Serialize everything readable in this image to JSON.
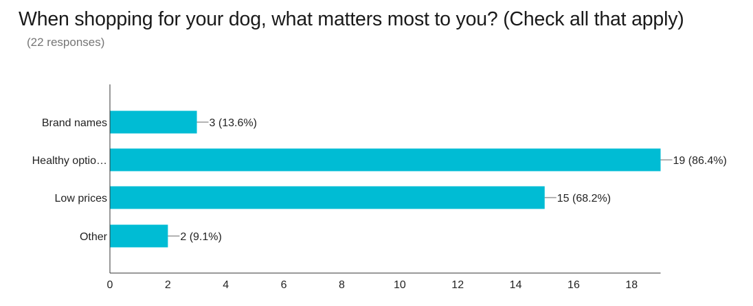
{
  "header": {
    "title": "When shopping for your dog, what matters most to you? (Check all that apply)",
    "responses": "(22 responses)"
  },
  "chart_data": {
    "type": "bar",
    "orientation": "horizontal",
    "categories": [
      "Brand names",
      "Healthy optio…",
      "Low prices",
      "Other"
    ],
    "values": [
      3,
      19,
      15,
      2
    ],
    "data_labels": [
      "3 (13.6%)",
      "19 (86.4%)",
      "15 (68.2%)",
      "2 (9.1%)"
    ],
    "x_ticks": [
      "0",
      "2",
      "4",
      "6",
      "8",
      "10",
      "12",
      "14",
      "16",
      "18"
    ],
    "xlim": [
      0,
      19
    ],
    "bar_color": "#00bcd4",
    "grid": false,
    "legend": "none"
  }
}
